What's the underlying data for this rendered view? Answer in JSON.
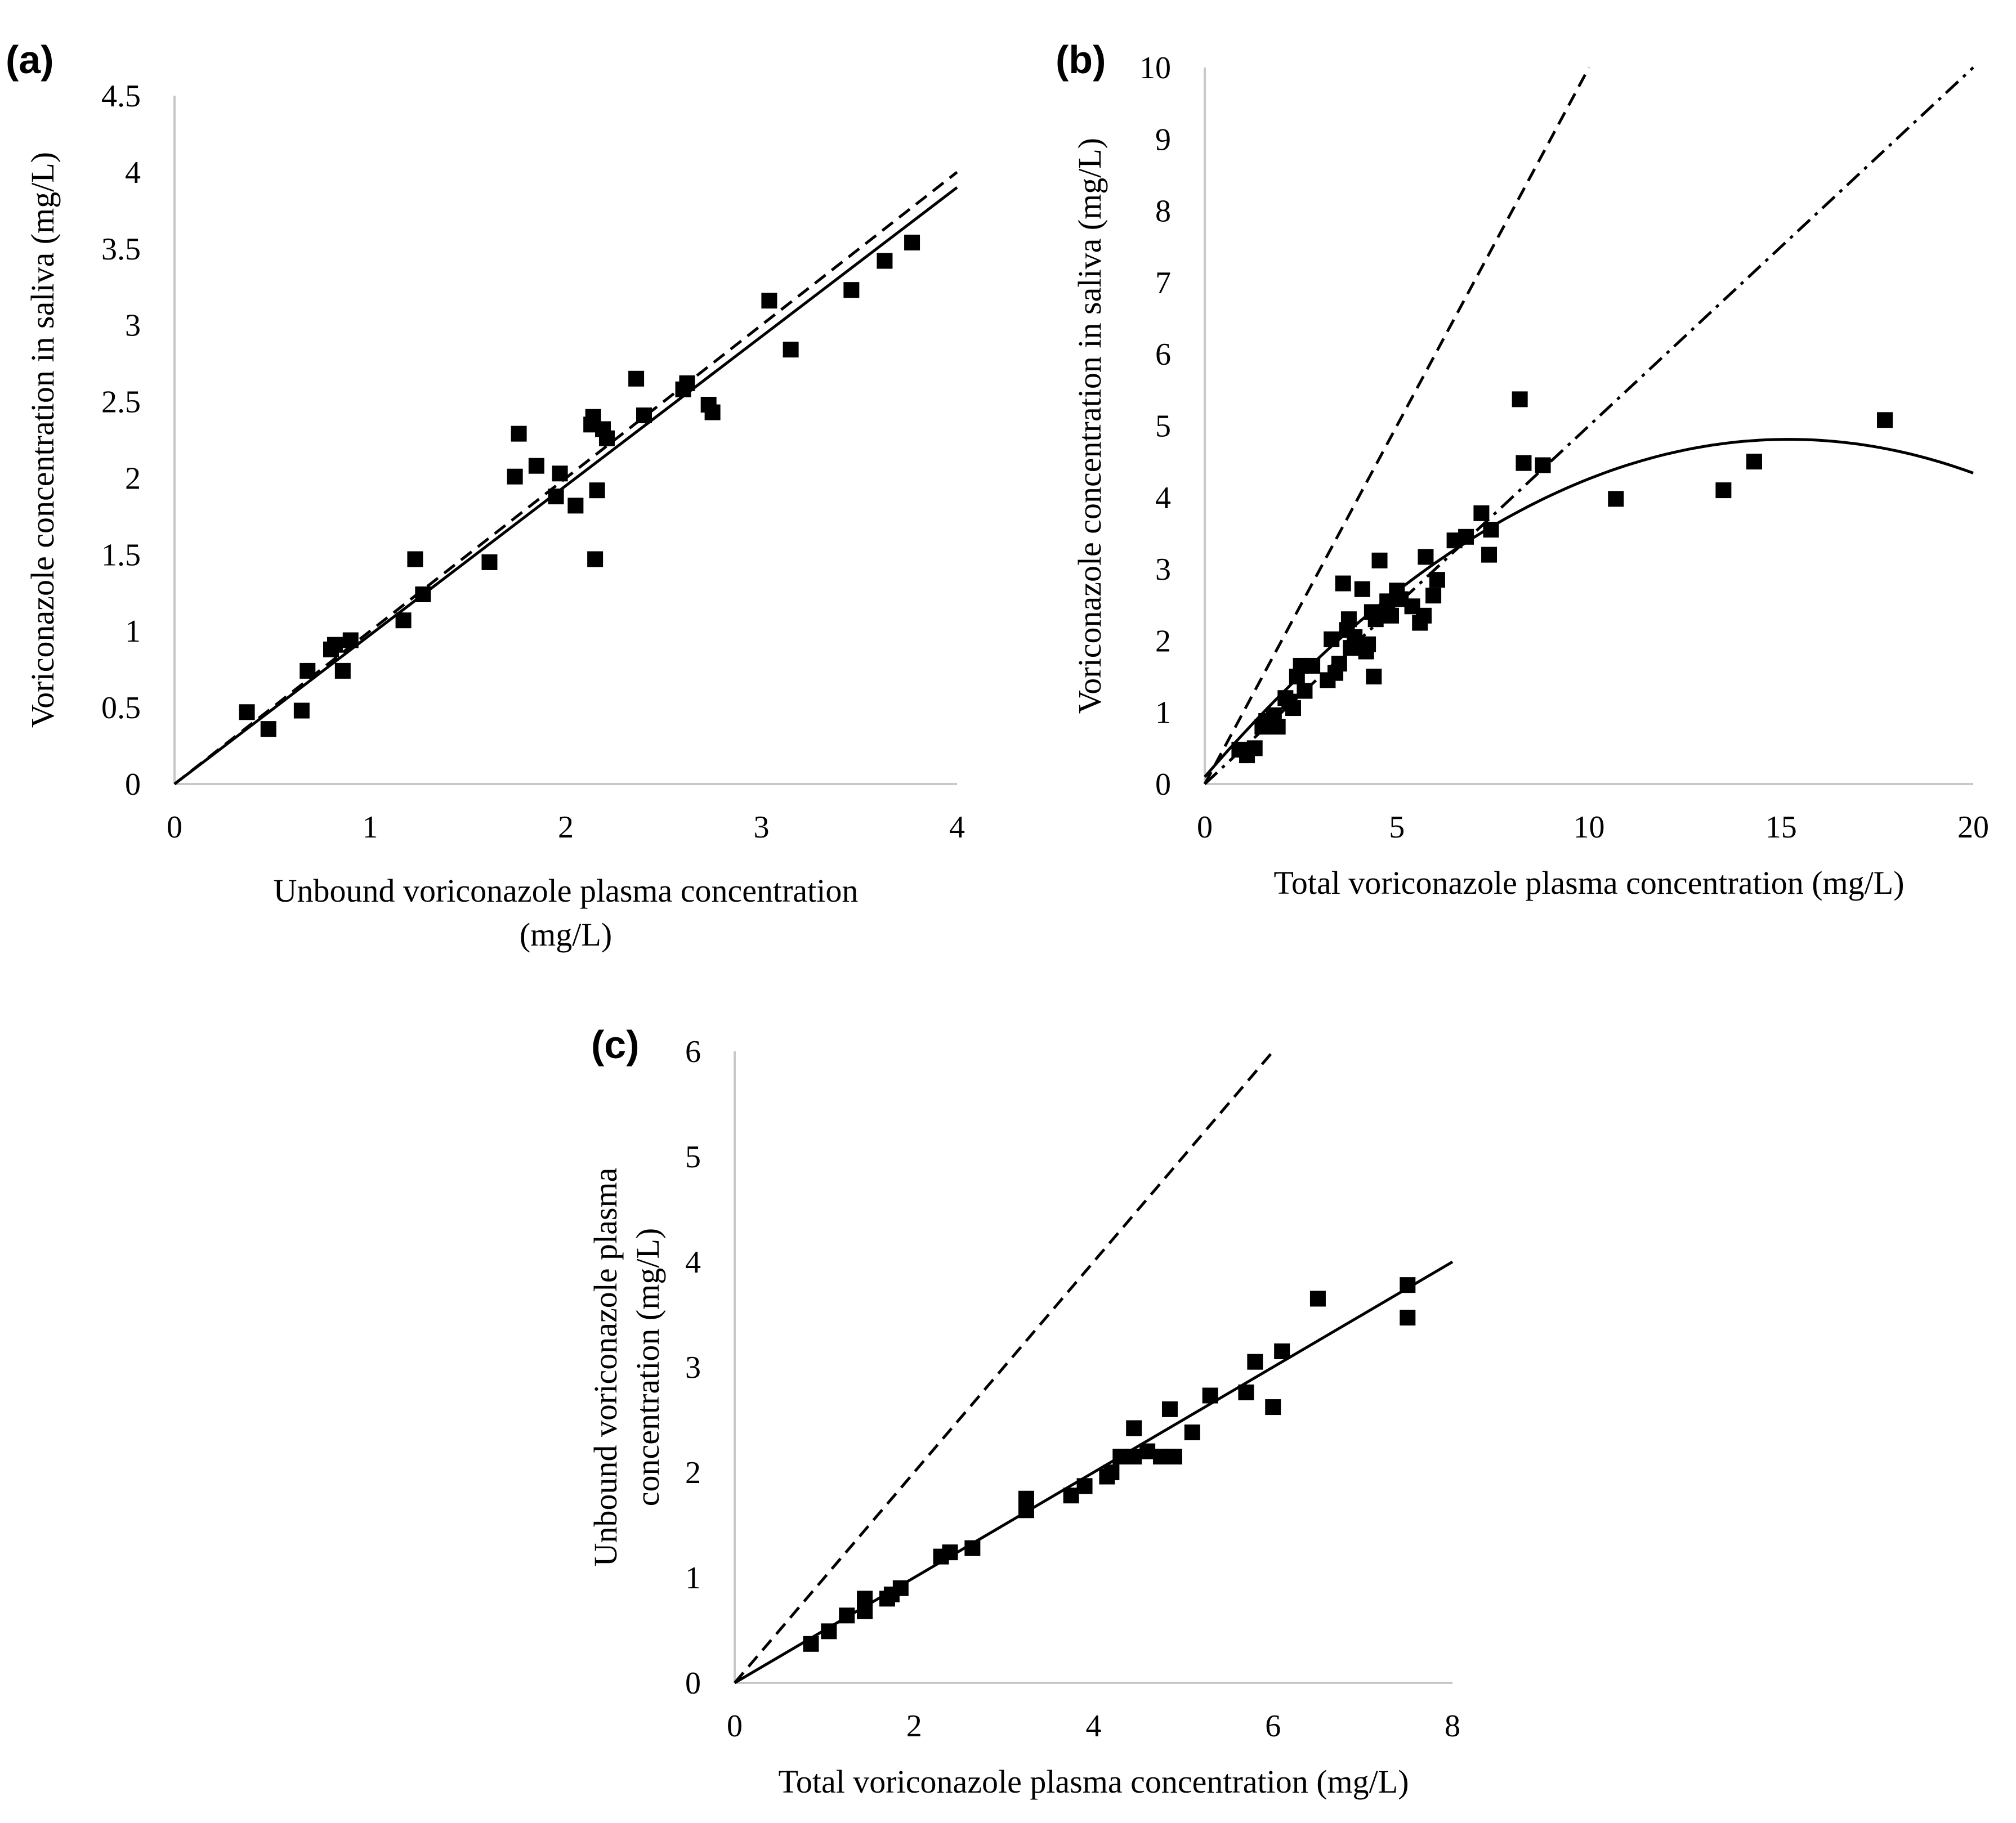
{
  "chart_data": [
    {
      "panel": "(a)",
      "type": "scatter",
      "xlabel": [
        "Unbound voriconazole plasma concentration",
        "(mg/L)"
      ],
      "ylabel": [
        "Voriconazole concentration in saliva (mg/L)"
      ],
      "xlim": [
        0,
        4
      ],
      "ylim": [
        0,
        4.5
      ],
      "xticks": [
        "0",
        "1",
        "2",
        "3",
        "4"
      ],
      "yticks": [
        "0",
        "0.5",
        "1",
        "1.5",
        "2",
        "2.5",
        "3",
        "3.5",
        "4",
        "4.5"
      ],
      "points": [
        [
          0.37,
          0.47
        ],
        [
          0.48,
          0.36
        ],
        [
          0.65,
          0.48
        ],
        [
          0.68,
          0.74
        ],
        [
          0.8,
          0.88
        ],
        [
          0.82,
          0.91
        ],
        [
          0.86,
          0.74
        ],
        [
          0.9,
          0.94
        ],
        [
          1.17,
          1.07
        ],
        [
          1.23,
          1.47
        ],
        [
          1.27,
          1.24
        ],
        [
          1.61,
          1.45
        ],
        [
          1.74,
          2.01
        ],
        [
          1.76,
          2.29
        ],
        [
          1.85,
          2.08
        ],
        [
          1.95,
          1.88
        ],
        [
          1.97,
          2.03
        ],
        [
          2.05,
          1.82
        ],
        [
          2.13,
          2.35
        ],
        [
          2.14,
          2.4
        ],
        [
          2.15,
          1.47
        ],
        [
          2.16,
          1.92
        ],
        [
          2.19,
          2.32
        ],
        [
          2.21,
          2.26
        ],
        [
          2.36,
          2.65
        ],
        [
          2.4,
          2.41
        ],
        [
          2.6,
          2.58
        ],
        [
          2.62,
          2.62
        ],
        [
          2.73,
          2.48
        ],
        [
          2.75,
          2.43
        ],
        [
          3.04,
          3.16
        ],
        [
          3.15,
          2.84
        ],
        [
          3.46,
          3.23
        ],
        [
          3.63,
          3.42
        ],
        [
          3.77,
          3.54
        ]
      ],
      "lines": [
        {
          "style": "solid",
          "x": [
            0,
            4
          ],
          "y": [
            0,
            3.9
          ]
        },
        {
          "style": "dashed",
          "x": [
            0,
            4
          ],
          "y": [
            0,
            4.0
          ]
        }
      ]
    },
    {
      "panel": "(b)",
      "type": "scatter",
      "xlabel": [
        "Total voriconazole plasma concentration (mg/L)"
      ],
      "ylabel": [
        "Voriconazole concentration in saliva (mg/L)"
      ],
      "xlim": [
        0,
        20
      ],
      "ylim": [
        0,
        10
      ],
      "xticks": [
        "0",
        "5",
        "10",
        "15",
        "20"
      ],
      "yticks": [
        "0",
        "1",
        "2",
        "3",
        "4",
        "5",
        "6",
        "7",
        "8",
        "9",
        "10"
      ],
      "points": [
        [
          0.9,
          0.48
        ],
        [
          1.1,
          0.4
        ],
        [
          1.3,
          0.5
        ],
        [
          1.5,
          0.8
        ],
        [
          1.6,
          0.88
        ],
        [
          1.7,
          0.83
        ],
        [
          1.8,
          0.96
        ],
        [
          1.9,
          0.8
        ],
        [
          2.1,
          1.2
        ],
        [
          2.2,
          1.15
        ],
        [
          2.3,
          1.06
        ],
        [
          2.4,
          1.5
        ],
        [
          2.5,
          1.65
        ],
        [
          2.6,
          1.3
        ],
        [
          2.8,
          1.65
        ],
        [
          3.2,
          1.45
        ],
        [
          3.3,
          2.02
        ],
        [
          3.4,
          1.55
        ],
        [
          3.5,
          1.68
        ],
        [
          3.6,
          2.8
        ],
        [
          3.7,
          2.15
        ],
        [
          3.75,
          2.3
        ],
        [
          3.8,
          1.9
        ],
        [
          3.9,
          2.05
        ],
        [
          4.1,
          2.72
        ],
        [
          4.2,
          1.85
        ],
        [
          4.25,
          1.95
        ],
        [
          4.35,
          2.4
        ],
        [
          4.4,
          1.5
        ],
        [
          4.45,
          2.3
        ],
        [
          4.55,
          3.12
        ],
        [
          4.65,
          2.4
        ],
        [
          4.75,
          2.55
        ],
        [
          4.85,
          2.35
        ],
        [
          5.0,
          2.7
        ],
        [
          5.1,
          2.58
        ],
        [
          5.4,
          2.48
        ],
        [
          5.6,
          2.25
        ],
        [
          5.7,
          2.35
        ],
        [
          5.75,
          3.17
        ],
        [
          5.95,
          2.63
        ],
        [
          6.05,
          2.85
        ],
        [
          6.5,
          3.4
        ],
        [
          6.8,
          3.45
        ],
        [
          7.2,
          3.78
        ],
        [
          7.4,
          3.2
        ],
        [
          7.45,
          3.55
        ],
        [
          8.2,
          5.37
        ],
        [
          8.3,
          4.48
        ],
        [
          8.8,
          4.45
        ],
        [
          10.7,
          3.98
        ],
        [
          13.5,
          4.1
        ],
        [
          14.3,
          4.5
        ],
        [
          17.7,
          5.08
        ]
      ],
      "lines": [
        {
          "style": "dashed",
          "x": [
            0,
            10
          ],
          "y": [
            0,
            10
          ]
        },
        {
          "style": "dashdot",
          "x": [
            0,
            20
          ],
          "y": [
            0,
            10
          ]
        },
        {
          "style": "solid",
          "curve": "quadratic",
          "coef": [
            -0.0204,
            0.62,
            0.1
          ],
          "x": [
            0,
            20
          ]
        }
      ]
    },
    {
      "panel": "(c)",
      "type": "scatter",
      "xlabel": [
        "Total voriconazole plasma concentration (mg/L)"
      ],
      "ylabel": [
        "Unbound voriconazole plasma",
        "concentration (mg/L)"
      ],
      "xlim": [
        0,
        8
      ],
      "ylim": [
        0,
        6
      ],
      "xticks": [
        "0",
        "2",
        "4",
        "6",
        "8"
      ],
      "yticks": [
        "0",
        "1",
        "2",
        "3",
        "4",
        "5",
        "6"
      ],
      "points": [
        [
          0.85,
          0.37
        ],
        [
          1.05,
          0.49
        ],
        [
          1.25,
          0.64
        ],
        [
          1.45,
          0.68
        ],
        [
          1.45,
          0.8
        ],
        [
          1.7,
          0.8
        ],
        [
          1.75,
          0.84
        ],
        [
          1.85,
          0.9
        ],
        [
          2.3,
          1.2
        ],
        [
          2.4,
          1.24
        ],
        [
          2.65,
          1.28
        ],
        [
          3.25,
          1.64
        ],
        [
          3.25,
          1.75
        ],
        [
          3.75,
          1.78
        ],
        [
          3.9,
          1.87
        ],
        [
          4.15,
          1.96
        ],
        [
          4.2,
          2.0
        ],
        [
          4.3,
          2.15
        ],
        [
          4.45,
          2.15
        ],
        [
          4.45,
          2.42
        ],
        [
          4.6,
          2.2
        ],
        [
          4.75,
          2.15
        ],
        [
          4.85,
          2.6
        ],
        [
          4.9,
          2.15
        ],
        [
          5.1,
          2.38
        ],
        [
          5.3,
          2.73
        ],
        [
          5.7,
          2.76
        ],
        [
          5.8,
          3.05
        ],
        [
          6.0,
          2.62
        ],
        [
          6.1,
          3.15
        ],
        [
          6.5,
          3.65
        ],
        [
          7.5,
          3.78
        ],
        [
          7.5,
          3.47
        ]
      ],
      "lines": [
        {
          "style": "solid",
          "x": [
            0,
            8
          ],
          "y": [
            0,
            4.0
          ]
        },
        {
          "style": "dashed",
          "x": [
            0,
            6
          ],
          "y": [
            0,
            6
          ]
        }
      ]
    }
  ]
}
